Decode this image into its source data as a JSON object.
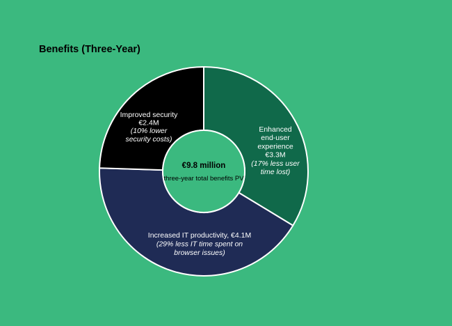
{
  "chart_data": {
    "type": "pie",
    "title": "Benefits (Three-Year)",
    "center": {
      "value": "€9.8 million",
      "caption": "three-year total benefits PV"
    },
    "unit": "€M",
    "slices": [
      {
        "key": "enhanced-ux",
        "value": 3.3,
        "color": "#10694a",
        "lines": [
          {
            "text": "Enhanced",
            "italic": false
          },
          {
            "text": "end-user",
            "italic": false
          },
          {
            "text": "experience",
            "italic": false
          },
          {
            "text": "€3.3M",
            "italic": false
          },
          {
            "text": "(17% less user",
            "italic": true
          },
          {
            "text": "time lost)",
            "italic": true
          }
        ]
      },
      {
        "key": "it-productivity",
        "value": 4.1,
        "color": "#1f2b55",
        "lines": [
          {
            "text": "Increased IT productivity, €4.1M",
            "italic": false
          },
          {
            "text": "(29% less IT time spent on",
            "italic": true
          },
          {
            "text": "browser issues)",
            "italic": true
          }
        ]
      },
      {
        "key": "security",
        "value": 2.4,
        "color": "#000000",
        "lines": [
          {
            "text": "Improved security",
            "italic": false
          },
          {
            "text": "€2.4M",
            "italic": false
          },
          {
            "text": "(10% lower",
            "italic": true
          },
          {
            "text": "security costs)",
            "italic": true
          }
        ]
      }
    ]
  }
}
